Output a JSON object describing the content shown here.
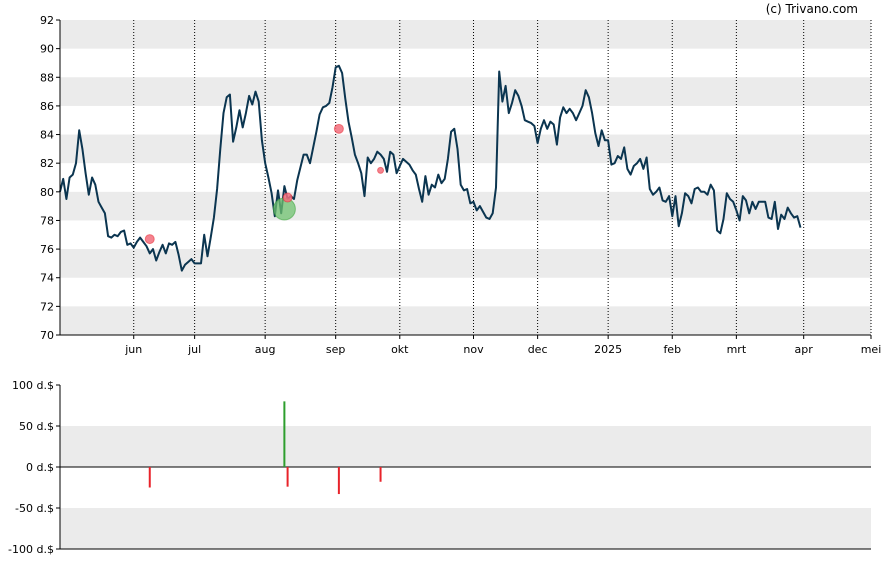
{
  "credit": "(c) Trivano.com",
  "colors": {
    "band": "#ebebeb",
    "line": "#0b3550",
    "buy": "#2e9e2e",
    "sell": "#e8232a",
    "buy_marker": "#6fc26f",
    "sell_marker": "#f26d7d"
  },
  "chart_data": [
    {
      "type": "line",
      "title": "",
      "xlabel": "",
      "ylabel": "",
      "ylim": [
        70,
        92
      ],
      "y_ticks": [
        "70",
        "72",
        "74",
        "76",
        "78",
        "80",
        "82",
        "84",
        "86",
        "88",
        "90",
        "92"
      ],
      "x_ticks": [
        {
          "label": "jun",
          "x": 23
        },
        {
          "label": "jul",
          "x": 42
        },
        {
          "label": "aug",
          "x": 64
        },
        {
          "label": "sep",
          "x": 86
        },
        {
          "label": "okt",
          "x": 106
        },
        {
          "label": "nov",
          "x": 129
        },
        {
          "label": "dec",
          "x": 149
        },
        {
          "label": "2025",
          "x": 171
        },
        {
          "label": "feb",
          "x": 191
        },
        {
          "label": "mrt",
          "x": 211
        },
        {
          "label": "apr",
          "x": 232
        },
        {
          "label": "mei",
          "x": 253
        }
      ],
      "x_range": [
        0,
        253
      ],
      "grid": "vertical dotted lines at month ticks, alternating horizontal bands",
      "series": [
        {
          "values": [
            [
              0,
              80.0
            ],
            [
              1,
              80.9
            ],
            [
              2,
              79.5
            ],
            [
              3,
              81.0
            ],
            [
              4,
              81.2
            ],
            [
              5,
              82.0
            ],
            [
              6,
              84.3
            ],
            [
              7,
              83.0
            ],
            [
              8,
              81.3
            ],
            [
              9,
              79.8
            ],
            [
              10,
              81.0
            ],
            [
              11,
              80.5
            ],
            [
              12,
              79.3
            ],
            [
              13,
              78.9
            ],
            [
              14,
              78.5
            ],
            [
              15,
              76.9
            ],
            [
              16,
              76.8
            ],
            [
              17,
              77.0
            ],
            [
              18,
              76.9
            ],
            [
              19,
              77.2
            ],
            [
              20,
              77.3
            ],
            [
              21,
              76.3
            ],
            [
              22,
              76.4
            ],
            [
              23,
              76.1
            ],
            [
              24,
              76.5
            ],
            [
              25,
              76.8
            ],
            [
              26,
              76.5
            ],
            [
              27,
              76.2
            ],
            [
              28,
              75.7
            ],
            [
              29,
              76.0
            ],
            [
              30,
              75.2
            ],
            [
              31,
              75.8
            ],
            [
              32,
              76.3
            ],
            [
              33,
              75.7
            ],
            [
              34,
              76.4
            ],
            [
              35,
              76.3
            ],
            [
              36,
              76.5
            ],
            [
              37,
              75.6
            ],
            [
              38,
              74.5
            ],
            [
              39,
              74.9
            ],
            [
              40,
              75.1
            ],
            [
              41,
              75.3
            ],
            [
              42,
              75.0
            ],
            [
              43,
              75.0
            ],
            [
              44,
              75.0
            ],
            [
              45,
              77.0
            ],
            [
              46,
              75.5
            ],
            [
              47,
              76.8
            ],
            [
              48,
              78.2
            ],
            [
              49,
              80.2
            ],
            [
              50,
              83.0
            ],
            [
              51,
              85.5
            ],
            [
              52,
              86.6
            ],
            [
              53,
              86.8
            ],
            [
              54,
              83.5
            ],
            [
              55,
              84.5
            ],
            [
              56,
              85.7
            ],
            [
              57,
              84.5
            ],
            [
              58,
              85.5
            ],
            [
              59,
              86.7
            ],
            [
              60,
              86.1
            ],
            [
              61,
              87.0
            ],
            [
              62,
              86.3
            ],
            [
              63,
              83.6
            ],
            [
              64,
              82.0
            ],
            [
              65,
              81.0
            ],
            [
              66,
              79.9
            ],
            [
              67,
              78.3
            ],
            [
              68,
              80.1
            ],
            [
              69,
              78.5
            ],
            [
              70,
              80.4
            ],
            [
              71,
              79.5
            ],
            [
              72,
              79.7
            ],
            [
              73,
              79.5
            ],
            [
              74,
              80.8
            ],
            [
              75,
              81.7
            ],
            [
              76,
              82.6
            ],
            [
              77,
              82.6
            ],
            [
              78,
              82.0
            ],
            [
              79,
              83.1
            ],
            [
              80,
              84.2
            ],
            [
              81,
              85.4
            ],
            [
              82,
              85.9
            ],
            [
              83,
              86.0
            ],
            [
              84,
              86.2
            ],
            [
              85,
              87.3
            ],
            [
              86,
              88.7
            ],
            [
              87,
              88.8
            ],
            [
              88,
              88.3
            ],
            [
              89,
              86.5
            ],
            [
              90,
              84.9
            ],
            [
              91,
              83.8
            ],
            [
              92,
              82.6
            ],
            [
              93,
              82.0
            ],
            [
              94,
              81.3
            ],
            [
              95,
              79.7
            ],
            [
              96,
              82.4
            ],
            [
              97,
              82.0
            ],
            [
              98,
              82.3
            ],
            [
              99,
              82.8
            ],
            [
              100,
              82.6
            ],
            [
              101,
              82.3
            ],
            [
              102,
              81.4
            ],
            [
              103,
              82.8
            ],
            [
              104,
              82.6
            ],
            [
              105,
              81.3
            ],
            [
              106,
              81.8
            ],
            [
              107,
              82.3
            ],
            [
              108,
              82.1
            ],
            [
              109,
              81.9
            ],
            [
              110,
              81.5
            ],
            [
              111,
              81.2
            ],
            [
              112,
              80.2
            ],
            [
              113,
              79.3
            ],
            [
              114,
              81.1
            ],
            [
              115,
              79.8
            ],
            [
              116,
              80.5
            ],
            [
              117,
              80.3
            ],
            [
              118,
              81.2
            ],
            [
              119,
              80.6
            ],
            [
              120,
              80.9
            ],
            [
              121,
              82.3
            ],
            [
              122,
              84.2
            ],
            [
              123,
              84.4
            ],
            [
              124,
              83.0
            ],
            [
              125,
              80.5
            ],
            [
              126,
              80.1
            ],
            [
              127,
              80.2
            ],
            [
              128,
              79.2
            ],
            [
              129,
              79.3
            ],
            [
              130,
              78.7
            ],
            [
              131,
              79.0
            ],
            [
              132,
              78.6
            ],
            [
              133,
              78.2
            ],
            [
              134,
              78.1
            ],
            [
              135,
              78.5
            ],
            [
              136,
              80.3
            ],
            [
              137,
              88.4
            ],
            [
              138,
              86.3
            ],
            [
              139,
              87.4
            ],
            [
              140,
              85.5
            ],
            [
              141,
              86.2
            ],
            [
              142,
              87.1
            ],
            [
              143,
              86.7
            ],
            [
              144,
              86.0
            ],
            [
              145,
              85.0
            ],
            [
              146,
              84.9
            ],
            [
              147,
              84.8
            ],
            [
              148,
              84.6
            ],
            [
              149,
              83.4
            ],
            [
              150,
              84.4
            ],
            [
              151,
              85.0
            ],
            [
              152,
              84.4
            ],
            [
              153,
              84.9
            ],
            [
              154,
              84.7
            ],
            [
              155,
              83.3
            ],
            [
              156,
              85.2
            ],
            [
              157,
              85.9
            ],
            [
              158,
              85.5
            ],
            [
              159,
              85.8
            ],
            [
              160,
              85.5
            ],
            [
              161,
              85.0
            ],
            [
              162,
              85.5
            ],
            [
              163,
              86.0
            ],
            [
              164,
              87.1
            ],
            [
              165,
              86.6
            ],
            [
              166,
              85.5
            ],
            [
              167,
              84.1
            ],
            [
              168,
              83.2
            ],
            [
              169,
              84.3
            ],
            [
              170,
              83.6
            ],
            [
              171,
              83.6
            ],
            [
              172,
              81.9
            ],
            [
              173,
              82.0
            ],
            [
              174,
              82.5
            ],
            [
              175,
              82.3
            ],
            [
              176,
              83.1
            ],
            [
              177,
              81.6
            ],
            [
              178,
              81.2
            ],
            [
              179,
              81.8
            ],
            [
              180,
              82.0
            ],
            [
              181,
              82.3
            ],
            [
              182,
              81.6
            ],
            [
              183,
              82.4
            ],
            [
              184,
              80.2
            ],
            [
              185,
              79.8
            ],
            [
              186,
              80.0
            ],
            [
              187,
              80.3
            ],
            [
              188,
              79.4
            ],
            [
              189,
              79.3
            ],
            [
              190,
              79.7
            ],
            [
              191,
              78.3
            ],
            [
              192,
              79.7
            ],
            [
              193,
              77.6
            ],
            [
              194,
              78.5
            ],
            [
              195,
              79.9
            ],
            [
              196,
              79.7
            ],
            [
              197,
              79.2
            ],
            [
              198,
              80.2
            ],
            [
              199,
              80.3
            ],
            [
              200,
              80.0
            ],
            [
              201,
              80.0
            ],
            [
              202,
              79.8
            ],
            [
              203,
              80.5
            ],
            [
              204,
              80.1
            ],
            [
              205,
              77.3
            ],
            [
              206,
              77.1
            ],
            [
              207,
              78.1
            ],
            [
              208,
              79.9
            ],
            [
              209,
              79.5
            ],
            [
              210,
              79.3
            ],
            [
              211,
              78.7
            ],
            [
              212,
              78.0
            ],
            [
              213,
              79.7
            ],
            [
              214,
              79.4
            ],
            [
              215,
              78.5
            ],
            [
              216,
              79.3
            ],
            [
              217,
              78.8
            ],
            [
              218,
              79.3
            ],
            [
              219,
              79.3
            ],
            [
              220,
              79.3
            ],
            [
              221,
              78.2
            ],
            [
              222,
              78.1
            ],
            [
              223,
              79.3
            ],
            [
              224,
              77.4
            ],
            [
              225,
              78.4
            ],
            [
              226,
              78.1
            ],
            [
              227,
              78.9
            ],
            [
              228,
              78.5
            ],
            [
              229,
              78.2
            ],
            [
              230,
              78.3
            ],
            [
              231,
              77.5
            ]
          ]
        }
      ],
      "markers": [
        {
          "type": "sell",
          "x": 28,
          "y": 76.7,
          "size": "small"
        },
        {
          "type": "buy",
          "x": 70,
          "y": 78.8,
          "size": "large"
        },
        {
          "type": "sell",
          "x": 71,
          "y": 79.6,
          "size": "small"
        },
        {
          "type": "sell",
          "x": 87,
          "y": 84.4,
          "size": "small"
        },
        {
          "type": "sell",
          "x": 100,
          "y": 81.5,
          "size": "tiny"
        }
      ]
    },
    {
      "type": "bar",
      "title": "",
      "xlabel": "",
      "ylabel": "",
      "ylim": [
        -100,
        100
      ],
      "y_ticks": [
        "-100 d.$",
        "-50 d.$",
        "0 d.$",
        "50 d.$",
        "100 d.$"
      ],
      "x_range": [
        0,
        253
      ],
      "series": [
        {
          "bars": [
            {
              "x": 28,
              "value": -25,
              "type": "sell"
            },
            {
              "x": 70,
              "value": 80,
              "type": "buy"
            },
            {
              "x": 71,
              "value": -24,
              "type": "sell"
            },
            {
              "x": 87,
              "value": -33,
              "type": "sell"
            },
            {
              "x": 100,
              "value": -18,
              "type": "sell"
            }
          ]
        }
      ]
    }
  ]
}
